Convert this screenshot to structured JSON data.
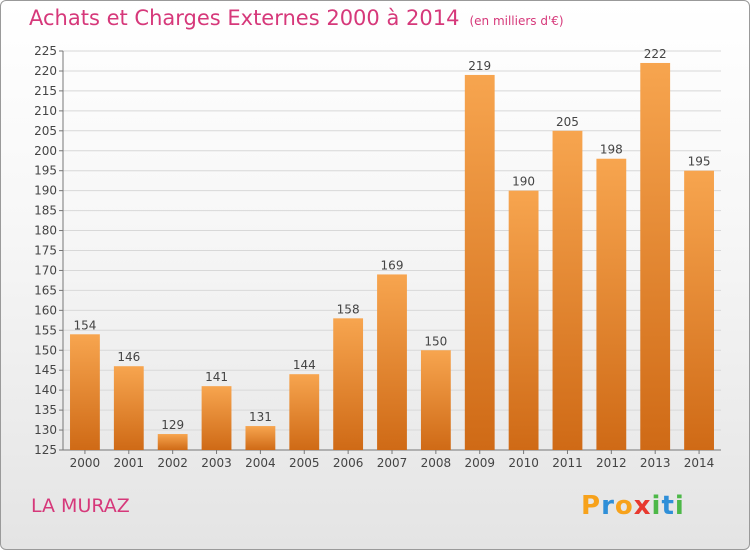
{
  "header": {
    "title": "Achats et Charges Externes 2000 à 2014",
    "unit": "(en milliers d'€)"
  },
  "footer": {
    "commune": "LA MURAZ",
    "logo_letters": [
      "P",
      "r",
      "o",
      "x",
      "i",
      "t",
      "i"
    ],
    "logo_colors": [
      "#f7a21b",
      "#2f8fd8",
      "#f7a21b",
      "#e8392f",
      "#4db848",
      "#2f8fd8",
      "#4db848"
    ]
  },
  "chart_data": {
    "type": "bar",
    "title": "Achats et Charges Externes 2000 à 2014",
    "subtitle": "(en milliers d'€)",
    "xlabel": "",
    "ylabel": "",
    "categories": [
      "2000",
      "2001",
      "2002",
      "2003",
      "2004",
      "2005",
      "2006",
      "2007",
      "2008",
      "2009",
      "2010",
      "2011",
      "2012",
      "2013",
      "2014"
    ],
    "values": [
      154,
      146,
      129,
      141,
      131,
      144,
      158,
      169,
      150,
      219,
      190,
      205,
      198,
      222,
      195
    ],
    "ylim": [
      125,
      225
    ],
    "yticks": [
      125,
      130,
      135,
      140,
      145,
      150,
      155,
      160,
      165,
      170,
      175,
      180,
      185,
      190,
      195,
      200,
      205,
      210,
      215,
      220,
      225
    ],
    "grid": true,
    "legend": "none",
    "bar_color": "#f29a3f",
    "title_color": "#d6387a"
  }
}
